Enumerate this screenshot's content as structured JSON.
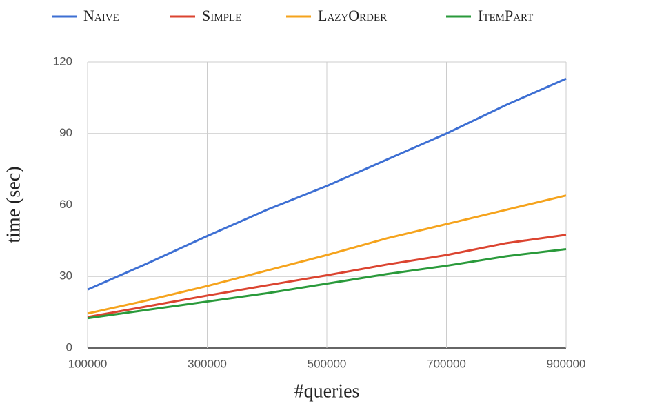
{
  "chart_data": {
    "type": "line",
    "x_label": "#queries",
    "y_label": "time (sec)",
    "x": [
      100000,
      200000,
      300000,
      400000,
      500000,
      600000,
      700000,
      800000,
      900000
    ],
    "series": [
      {
        "name": "Naive",
        "color": "#3d6fd3",
        "values": [
          24.5,
          35.5,
          47,
          58,
          68,
          79,
          90,
          102,
          113
        ]
      },
      {
        "name": "Simple",
        "color": "#db4430",
        "values": [
          13,
          17.5,
          22,
          26.3,
          30.5,
          35,
          39,
          44,
          47.5
        ]
      },
      {
        "name": "LazyOrder",
        "color": "#f5a31c",
        "values": [
          14.5,
          20,
          26,
          32.5,
          39,
          46,
          52,
          58,
          64
        ]
      },
      {
        "name": "ItemPart",
        "color": "#2a9a3b",
        "values": [
          12.5,
          16,
          19.5,
          23,
          27,
          31,
          34.5,
          38.5,
          41.5
        ]
      }
    ],
    "xlim": [
      100000,
      900000
    ],
    "xticks": [
      100000,
      300000,
      500000,
      700000,
      900000
    ],
    "ylim": [
      0,
      120
    ],
    "yticks": [
      0,
      30,
      60,
      90,
      120
    ],
    "grid": true,
    "legend": "top"
  }
}
